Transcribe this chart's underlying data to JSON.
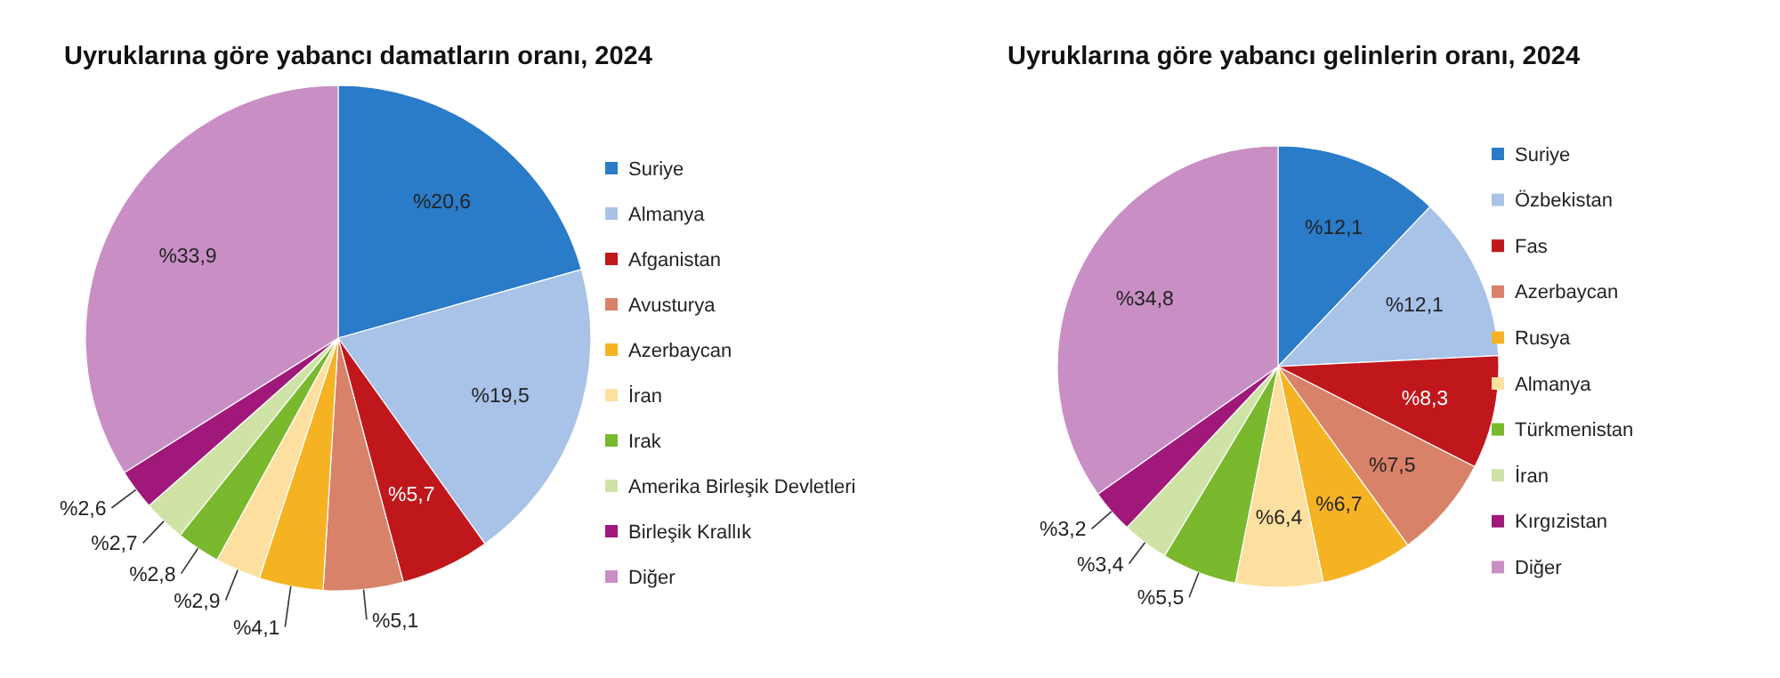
{
  "chart_data": [
    {
      "type": "pie",
      "title": "Uyruklarına göre yabancı damatların oranı, 2024",
      "legend": "right",
      "categories": [
        "Suriye",
        "Almanya",
        "Afganistan",
        "Avusturya",
        "Azerbaycan",
        "İran",
        "Irak",
        "Amerika Birleşik Devletleri",
        "Birleşik Krallık",
        "Diğer"
      ],
      "values": [
        20.6,
        19.5,
        5.7,
        5.1,
        4.1,
        2.9,
        2.8,
        2.7,
        2.6,
        33.9
      ],
      "colors": [
        "#2a7bc8",
        "#a8c2e8",
        "#c0171c",
        "#d9826a",
        "#f5b324",
        "#fde0a0",
        "#7ab82e",
        "#cfe3a6",
        "#a0197a",
        "#c98fc5"
      ],
      "value_labels": [
        "%20,6",
        "%19,5",
        "%5,7",
        "%5,1",
        "%4,1",
        "%2,9",
        "%2,8",
        "%2,7",
        "%2,6",
        "%33,9"
      ]
    },
    {
      "type": "pie",
      "title": "Uyruklarına göre yabancı gelinlerin oranı, 2024",
      "legend": "right",
      "categories": [
        "Suriye",
        "Özbekistan",
        "Fas",
        "Azerbaycan",
        "Rusya",
        "Almanya",
        "Türkmenistan",
        "İran",
        "Kırgızistan",
        "Diğer"
      ],
      "values": [
        12.1,
        12.1,
        8.3,
        7.5,
        6.7,
        6.4,
        5.5,
        3.4,
        3.2,
        34.8
      ],
      "colors": [
        "#2a7bc8",
        "#a8c2e8",
        "#c0171c",
        "#d9826a",
        "#f5b324",
        "#fde0a0",
        "#7ab82e",
        "#cfe3a6",
        "#a0197a",
        "#c98fc5"
      ],
      "value_labels": [
        "%12,1",
        "%12,1",
        "%8,3",
        "%7,5",
        "%6,7",
        "%6,4",
        "%5,5",
        "%3,4",
        "%3,2",
        "%34,8"
      ]
    }
  ]
}
